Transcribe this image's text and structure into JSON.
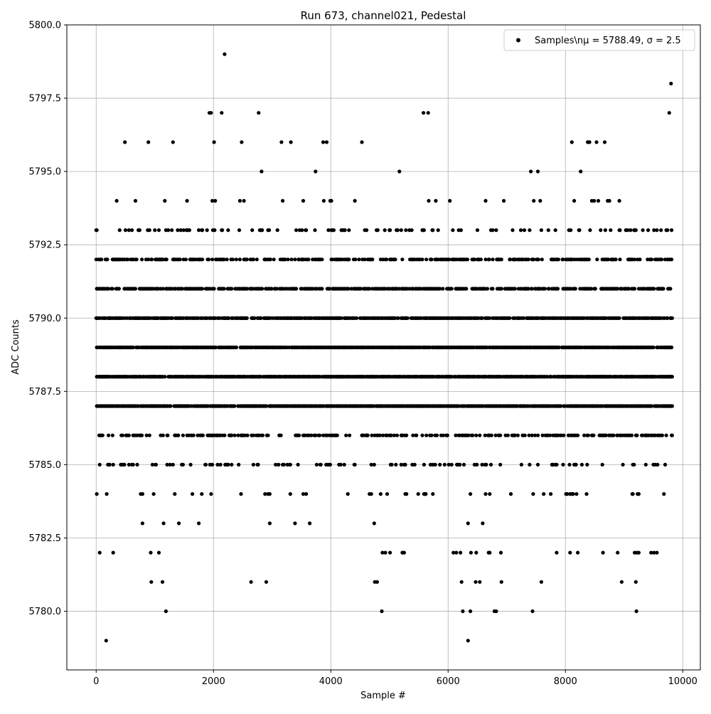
{
  "chart_data": {
    "type": "scatter",
    "title": "Run 673, channel021, Pedestal",
    "xlabel": "Sample #",
    "ylabel": "ADC Counts",
    "xlim": [
      -500,
      10300
    ],
    "ylim": [
      5778,
      5800
    ],
    "xticks": [
      0,
      2000,
      4000,
      6000,
      8000,
      10000
    ],
    "xtick_labels": [
      "0",
      "2000",
      "4000",
      "6000",
      "8000",
      "10000"
    ],
    "yticks": [
      5780.0,
      5782.5,
      5785.0,
      5787.5,
      5790.0,
      5792.5,
      5795.0,
      5797.5,
      5800.0
    ],
    "ytick_labels": [
      "5780.0",
      "5782.5",
      "5785.0",
      "5787.5",
      "5790.0",
      "5792.5",
      "5795.0",
      "5797.5",
      "5800.0"
    ],
    "grid": true,
    "legend": {
      "placement": "top-right",
      "label": "Samples\\nμ = 5788.49, σ = 2.5"
    },
    "series": [
      {
        "name": "Samples\\nμ = 5788.49, σ = 2.5",
        "color": "#000000",
        "marker": "circle",
        "x_range": [
          0,
          9820
        ],
        "levels": [
          {
            "y": 5779,
            "density": 0.0002,
            "x": [
              170,
              6340
            ]
          },
          {
            "y": 5780,
            "density": 0.0007,
            "x": [
              1190,
              4870,
              6250,
              6380,
              6790,
              6820,
              7440,
              9210
            ]
          },
          {
            "y": 5781,
            "density": 0.0014,
            "x": [
              940,
              1130,
              2640,
              2900,
              4750,
              4790,
              6230,
              6470,
              6540,
              6910,
              7590,
              8960,
              9200
            ]
          },
          {
            "y": 5782,
            "density": 0.004,
            "x": [
              60,
              290,
              930,
              1070,
              4880,
              4930,
              5010,
              5220,
              5250,
              6090,
              6140,
              6210,
              6390,
              6480,
              6690,
              6710,
              6900,
              7850,
              8080,
              8210,
              8640,
              8890,
              9180,
              9220,
              9250,
              9460,
              9510,
              9560
            ]
          },
          {
            "y": 5783,
            "density": 0.012
          },
          {
            "y": 5784,
            "density": 0.05
          },
          {
            "y": 5785,
            "density": 0.12
          },
          {
            "y": 5786,
            "density": 0.25
          },
          {
            "y": 5787,
            "density": 0.7
          },
          {
            "y": 5788,
            "density": 0.75
          },
          {
            "y": 5789,
            "density": 0.7
          },
          {
            "y": 5790,
            "density": 0.6
          },
          {
            "y": 5791,
            "density": 0.45
          },
          {
            "y": 5792,
            "density": 0.3
          },
          {
            "y": 5793,
            "density": 0.12
          },
          {
            "y": 5794,
            "density": 0.04
          },
          {
            "y": 5795,
            "density": 0.008
          },
          {
            "y": 5796,
            "density": 0.002,
            "x": [
              490,
              890,
              1310,
              2010,
              2480,
              3160,
              3320,
              3870,
              3930,
              4530,
              8110,
              8380,
              8410,
              8530,
              8670
            ]
          },
          {
            "y": 5797,
            "density": 0.0008,
            "x": [
              1930,
              1960,
              2140,
              2770,
              5580,
              5660,
              9770
            ]
          },
          {
            "y": 5798,
            "density": 0.0001,
            "x": [
              9800
            ]
          },
          {
            "y": 5799,
            "density": 0.0001,
            "x": [
              2190
            ]
          }
        ]
      }
    ]
  }
}
